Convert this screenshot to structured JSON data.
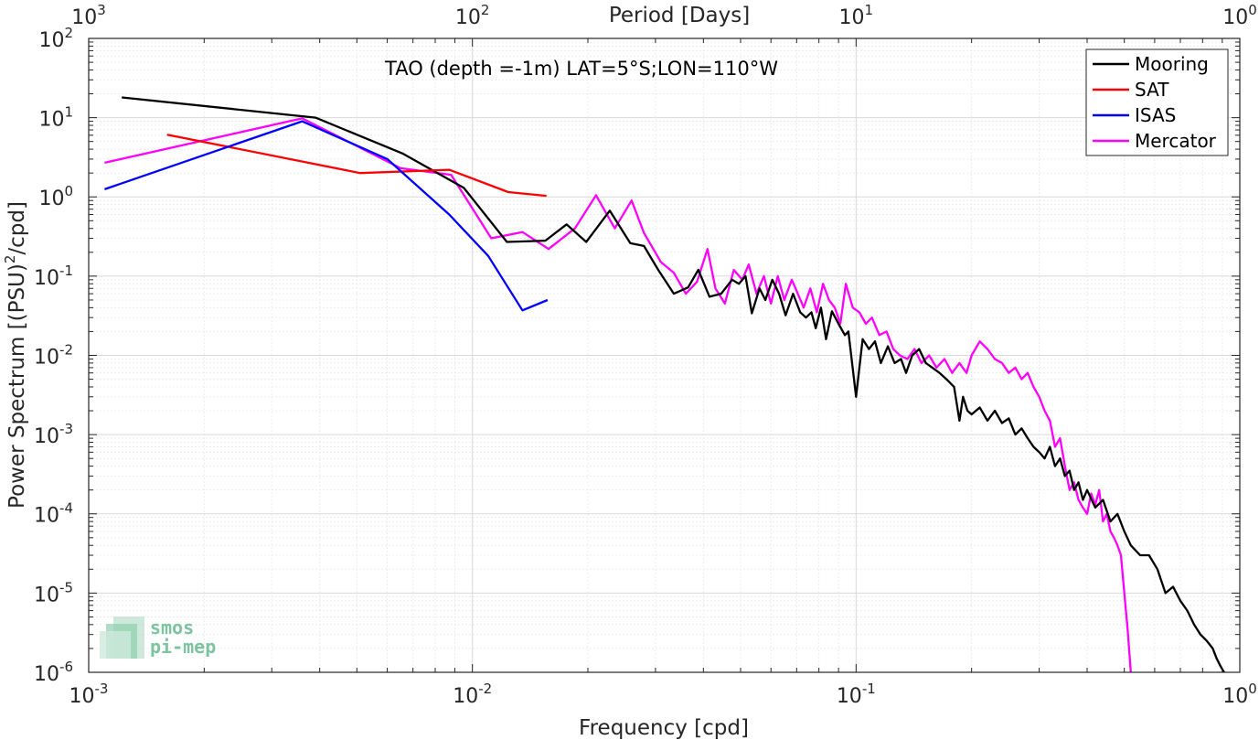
{
  "chart_data": {
    "type": "line",
    "title": "TAO (depth =-1m) LAT=5°S;LON=110°W",
    "xlabel": "Frequency [cpd]",
    "ylabel_main": "Power Spectrum [(PSU)",
    "ylabel_sup": "2",
    "ylabel_tail": "/cpd]",
    "top_axis_label": "Period [Days]",
    "xscale": "log",
    "yscale": "log",
    "xlim": [
      0.001,
      1
    ],
    "ylim": [
      1e-06,
      100
    ],
    "grid": true,
    "legend_position": "top-right",
    "x_ticks": [
      {
        "base": "10",
        "exp": "-3"
      },
      {
        "base": "10",
        "exp": "-2"
      },
      {
        "base": "10",
        "exp": "-1"
      },
      {
        "base": "10",
        "exp": "0"
      }
    ],
    "top_ticks": [
      {
        "base": "10",
        "exp": "3"
      },
      {
        "base": "10",
        "exp": "2"
      },
      {
        "base": "10",
        "exp": "1"
      },
      {
        "base": "10",
        "exp": "0"
      }
    ],
    "y_ticks": [
      {
        "base": "10",
        "exp": "2"
      },
      {
        "base": "10",
        "exp": "1"
      },
      {
        "base": "10",
        "exp": "0"
      },
      {
        "base": "10",
        "exp": "-1"
      },
      {
        "base": "10",
        "exp": "-2"
      },
      {
        "base": "10",
        "exp": "-3"
      },
      {
        "base": "10",
        "exp": "-4"
      },
      {
        "base": "10",
        "exp": "-5"
      },
      {
        "base": "10",
        "exp": "-6"
      }
    ],
    "series": [
      {
        "name": "Mooring",
        "color": "#000000",
        "x": [
          0.00122,
          0.0039,
          0.0066,
          0.0095,
          0.0123,
          0.0155,
          0.0176,
          0.0198,
          0.0228,
          0.0258,
          0.028,
          0.0305,
          0.0335,
          0.0365,
          0.0388,
          0.0415,
          0.0445,
          0.0475,
          0.0495,
          0.0515,
          0.0535,
          0.056,
          0.058,
          0.0605,
          0.063,
          0.0655,
          0.0685,
          0.0715,
          0.074,
          0.0765,
          0.0785,
          0.081,
          0.0835,
          0.0865,
          0.09,
          0.0935,
          0.0955,
          0.1,
          0.104,
          0.108,
          0.112,
          0.116,
          0.121,
          0.126,
          0.131,
          0.135,
          0.14,
          0.146,
          0.152,
          0.158,
          0.165,
          0.172,
          0.18,
          0.186,
          0.19,
          0.195,
          0.2,
          0.21,
          0.22,
          0.23,
          0.24,
          0.25,
          0.26,
          0.27,
          0.28,
          0.29,
          0.3,
          0.31,
          0.32,
          0.33,
          0.34,
          0.35,
          0.36,
          0.37,
          0.38,
          0.39,
          0.4,
          0.42,
          0.44,
          0.46,
          0.48,
          0.5,
          0.52,
          0.55,
          0.58,
          0.61,
          0.64,
          0.67,
          0.7,
          0.73,
          0.76,
          0.79,
          0.82,
          0.85,
          0.87,
          0.89,
          0.91,
          0.93,
          0.95
        ],
        "values": [
          18,
          10,
          3.5,
          1.3,
          0.27,
          0.28,
          0.45,
          0.27,
          0.67,
          0.26,
          0.24,
          0.12,
          0.06,
          0.072,
          0.12,
          0.055,
          0.06,
          0.09,
          0.08,
          0.1,
          0.034,
          0.07,
          0.05,
          0.09,
          0.06,
          0.032,
          0.06,
          0.035,
          0.03,
          0.035,
          0.022,
          0.04,
          0.016,
          0.036,
          0.025,
          0.018,
          0.02,
          0.003,
          0.016,
          0.012,
          0.015,
          0.008,
          0.013,
          0.008,
          0.009,
          0.006,
          0.01,
          0.012,
          0.008,
          0.007,
          0.006,
          0.005,
          0.004,
          0.0015,
          0.003,
          0.002,
          0.0018,
          0.0022,
          0.0015,
          0.002,
          0.0014,
          0.0016,
          0.001,
          0.0012,
          0.0009,
          0.0007,
          0.0006,
          0.0005,
          0.0007,
          0.0004,
          0.0005,
          0.0003,
          0.00035,
          0.0002,
          0.00025,
          0.00015,
          0.0002,
          0.00012,
          0.00015,
          8e-05,
          0.0001,
          6e-05,
          4e-05,
          3e-05,
          3e-05,
          2e-05,
          1e-05,
          1.2e-05,
          8e-06,
          6e-06,
          4e-06,
          3e-06,
          2.5e-06,
          2e-06,
          1.5e-06,
          1.2e-06,
          1e-06,
          9e-07,
          8e-07
        ]
      },
      {
        "name": "SAT",
        "color": "#ff0000",
        "x": [
          0.0016,
          0.0051,
          0.0087,
          0.0124,
          0.0156
        ],
        "values": [
          6.1,
          2.0,
          2.2,
          1.15,
          1.03
        ]
      },
      {
        "name": "ISAS",
        "color": "#0000ff",
        "x": [
          0.0011,
          0.0036,
          0.006,
          0.0087,
          0.011,
          0.0135,
          0.0157
        ],
        "values": [
          1.25,
          9.0,
          3.0,
          0.6,
          0.18,
          0.037,
          0.05
        ]
      },
      {
        "name": "Mercator",
        "color": "#ff00ff",
        "x": [
          0.0011,
          0.0036,
          0.0065,
          0.0088,
          0.0112,
          0.0135,
          0.0158,
          0.0185,
          0.021,
          0.0235,
          0.026,
          0.028,
          0.031,
          0.0335,
          0.036,
          0.0385,
          0.041,
          0.043,
          0.0455,
          0.048,
          0.0505,
          0.0525,
          0.055,
          0.0575,
          0.06,
          0.0625,
          0.065,
          0.068,
          0.07,
          0.073,
          0.076,
          0.079,
          0.082,
          0.085,
          0.088,
          0.091,
          0.094,
          0.098,
          0.102,
          0.106,
          0.11,
          0.115,
          0.12,
          0.125,
          0.13,
          0.136,
          0.142,
          0.148,
          0.155,
          0.162,
          0.17,
          0.178,
          0.186,
          0.194,
          0.2,
          0.21,
          0.22,
          0.23,
          0.24,
          0.25,
          0.26,
          0.27,
          0.28,
          0.29,
          0.3,
          0.31,
          0.32,
          0.33,
          0.34,
          0.35,
          0.36,
          0.37,
          0.38,
          0.39,
          0.4,
          0.41,
          0.42,
          0.43,
          0.44,
          0.45,
          0.46,
          0.47,
          0.48,
          0.49,
          0.5,
          0.51,
          0.52
        ],
        "values": [
          2.7,
          9.8,
          2.3,
          1.9,
          0.3,
          0.36,
          0.22,
          0.4,
          1.05,
          0.4,
          0.9,
          0.35,
          0.15,
          0.11,
          0.06,
          0.085,
          0.22,
          0.07,
          0.045,
          0.12,
          0.09,
          0.14,
          0.06,
          0.1,
          0.045,
          0.1,
          0.05,
          0.09,
          0.065,
          0.04,
          0.07,
          0.035,
          0.08,
          0.05,
          0.04,
          0.025,
          0.08,
          0.04,
          0.035,
          0.025,
          0.03,
          0.018,
          0.02,
          0.012,
          0.01,
          0.009,
          0.012,
          0.008,
          0.01,
          0.007,
          0.009,
          0.006,
          0.008,
          0.006,
          0.01,
          0.015,
          0.012,
          0.009,
          0.008,
          0.006,
          0.007,
          0.005,
          0.006,
          0.004,
          0.003,
          0.002,
          0.0015,
          0.0007,
          0.0009,
          0.0004,
          0.0002,
          0.00025,
          0.00015,
          0.00012,
          0.0001,
          0.00018,
          0.00013,
          0.0002,
          8e-05,
          0.0001,
          6e-05,
          5e-05,
          4e-05,
          3e-05,
          1e-05,
          3.5e-06,
          1e-06
        ]
      }
    ]
  },
  "logo": {
    "line1": "smos",
    "line2": "pi-mep"
  }
}
